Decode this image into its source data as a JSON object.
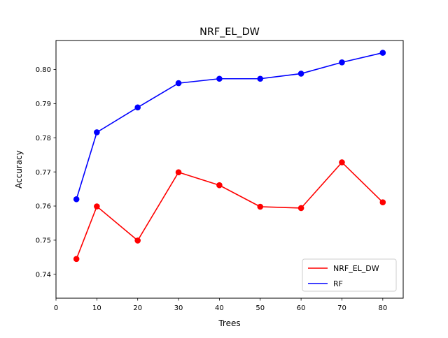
{
  "chart_data": {
    "type": "line",
    "title": "NRF_EL_DW",
    "xlabel": "Trees",
    "ylabel": "Accuracy",
    "xlim": [
      0,
      85
    ],
    "ylim": [
      0.733,
      0.8085
    ],
    "xticks": [
      0,
      10,
      20,
      30,
      40,
      50,
      60,
      70,
      80
    ],
    "xtick_labels": [
      "0",
      "10",
      "20",
      "30",
      "40",
      "50",
      "60",
      "70",
      "80"
    ],
    "yticks": [
      0.74,
      0.75,
      0.76,
      0.77,
      0.78,
      0.79,
      0.8
    ],
    "ytick_labels": [
      "0.74",
      "0.75",
      "0.76",
      "0.77",
      "0.78",
      "0.79",
      "0.80"
    ],
    "grid": false,
    "legend": "lower-right",
    "x": [
      5,
      10,
      20,
      30,
      40,
      50,
      60,
      70,
      80
    ],
    "series": [
      {
        "name": "NRF_EL_DW",
        "color": "#ff0000",
        "marker": "circle",
        "values": [
          0.7445,
          0.7599,
          0.7499,
          0.7699,
          0.7661,
          0.7598,
          0.7594,
          0.7728,
          0.7611
        ]
      },
      {
        "name": "RF",
        "color": "#0000ff",
        "marker": "circle",
        "values": [
          0.762,
          0.7816,
          0.7889,
          0.796,
          0.7973,
          0.7973,
          0.7988,
          0.8021,
          0.8049
        ]
      }
    ]
  }
}
